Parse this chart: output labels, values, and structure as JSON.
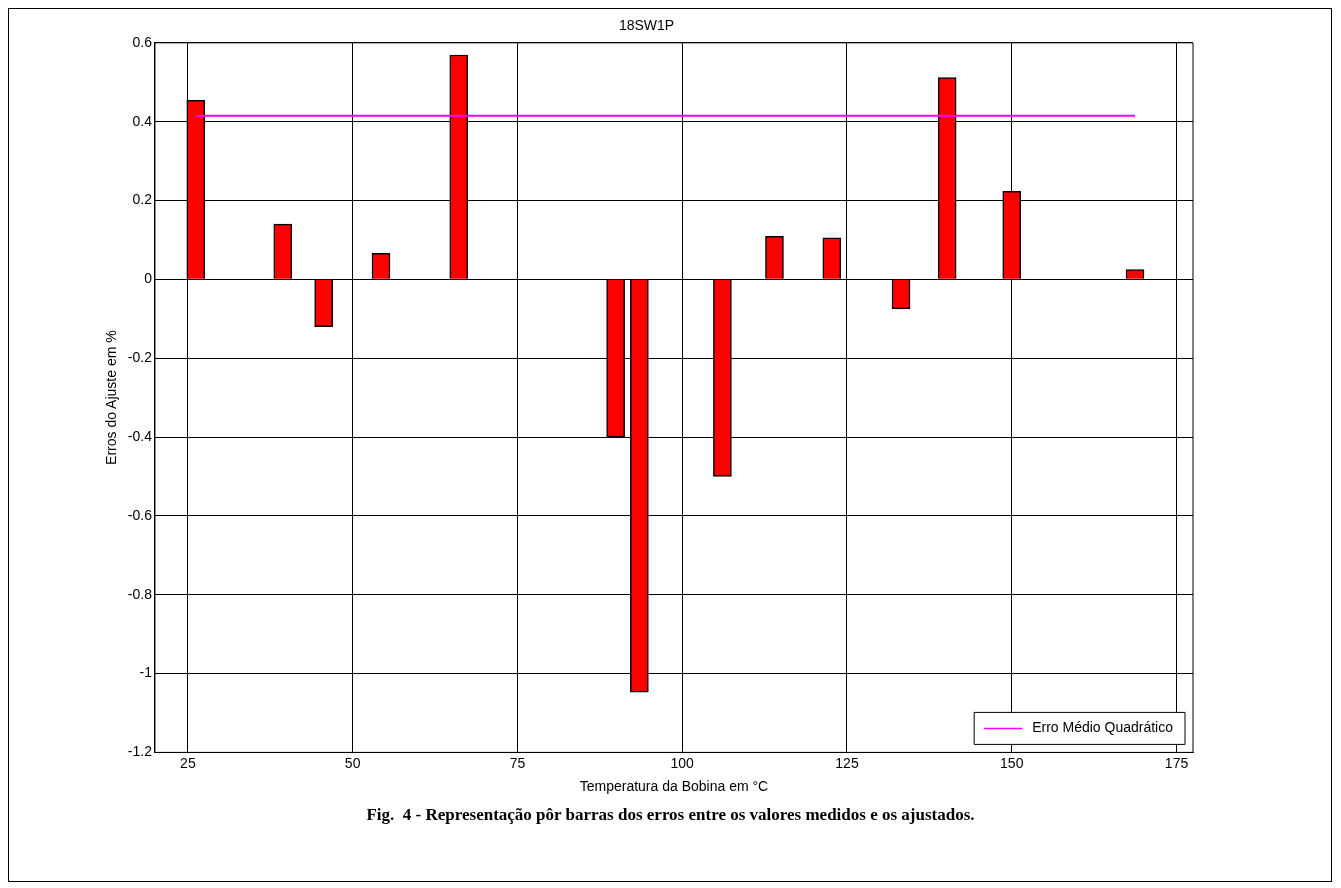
{
  "chart_data": {
    "type": "bar",
    "title": "18SW1P",
    "xlabel": "Temperatura da Bobina em °C",
    "ylabel": "Erros do Ajuste em %",
    "series": [
      {
        "color": "#ff0000",
        "x": [
          26.2,
          39.4,
          45.6,
          54.3,
          66.1,
          89.9,
          93.5,
          106.1,
          114.0,
          122.7,
          133.2,
          140.2,
          150.0,
          168.7
        ],
        "values": [
          0.454,
          0.14,
          -0.12,
          0.066,
          0.569,
          -0.4,
          -1.047,
          -0.5,
          0.109,
          0.105,
          -0.075,
          0.512,
          0.223,
          0.025
        ]
      },
      {
        "type": "line",
        "name": "Erro Médio Quadrático",
        "color": "#ff00ff",
        "x": [
          26.2,
          168.7
        ],
        "values": [
          0.415,
          0.415
        ]
      }
    ],
    "xlim": [
      20,
      177.5
    ],
    "xticks": [
      25,
      50,
      75,
      100,
      125,
      150,
      175
    ],
    "ylim": [
      -1.2,
      0.6
    ],
    "yticks": [
      -1.2,
      -1,
      -0.8,
      -0.6,
      -0.4,
      -0.2,
      0,
      0.2,
      0.4,
      0.6
    ],
    "grid": true,
    "legend": "bottom right",
    "annotations": [
      "Fig.  4 - Representação pôr barras dos erros entre os valores medidos e os ajustados."
    ]
  }
}
